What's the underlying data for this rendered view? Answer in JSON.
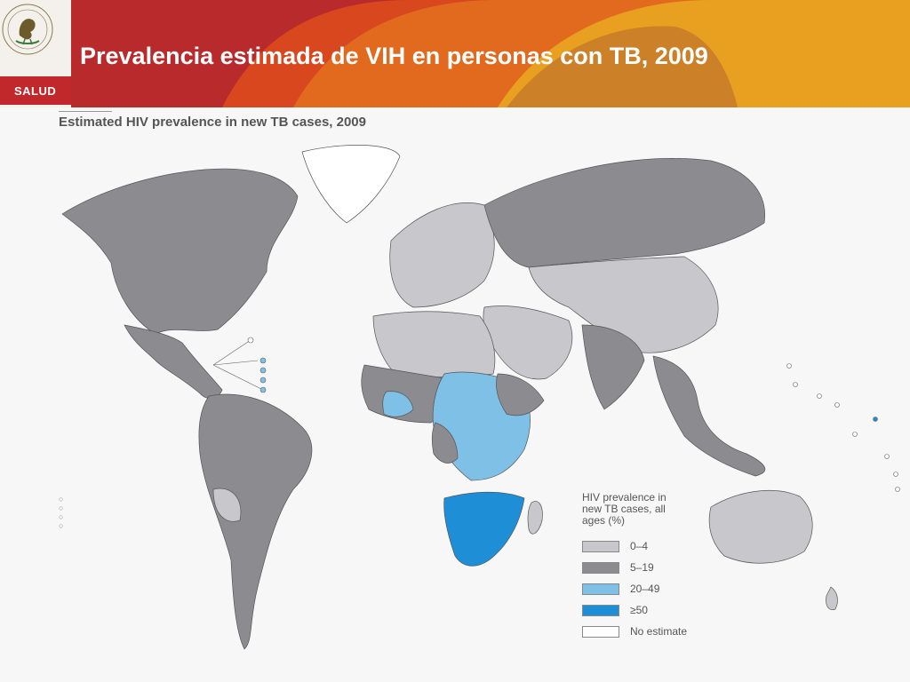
{
  "header": {
    "title": "Prevalencia estimada de VIH en personas con TB, 2009",
    "brand": "SALUD",
    "seal_text": "ESTADOS UNIDOS MEXICANOS",
    "colors": {
      "red": "#b82a2b",
      "orange": "#e26a1e",
      "amber": "#e9a020",
      "brown": "#c77a2a"
    }
  },
  "map": {
    "title": "Estimated HIV prevalence in new TB cases, 2009",
    "legend": {
      "title": "HIV prevalence in new TB cases, all ages (%)",
      "items": [
        {
          "label": "0–4",
          "color": "#c8c8cc"
        },
        {
          "label": "5–19",
          "color": "#8c8c90"
        },
        {
          "label": "20–49",
          "color": "#7fc0e6"
        },
        {
          "label": "≥50",
          "color": "#1e8fd6"
        },
        {
          "label": "No estimate",
          "color": "#ffffff"
        }
      ]
    },
    "regions": [
      {
        "name": "North America",
        "category": "5–19"
      },
      {
        "name": "Greenland",
        "category": "No estimate"
      },
      {
        "name": "Mexico & Central America",
        "category": "5–19"
      },
      {
        "name": "South America",
        "category": "5–19"
      },
      {
        "name": "Europe",
        "category": "0–4"
      },
      {
        "name": "Russia",
        "category": "5–19"
      },
      {
        "name": "North Africa",
        "category": "0–4"
      },
      {
        "name": "Middle East",
        "category": "0–4"
      },
      {
        "name": "West Africa",
        "category": "5–19"
      },
      {
        "name": "Central / East Africa",
        "category": "20–49"
      },
      {
        "name": "Southern Africa",
        "category": "≥50"
      },
      {
        "name": "China & Central Asia",
        "category": "0–4"
      },
      {
        "name": "South Asia",
        "category": "5–19"
      },
      {
        "name": "Southeast Asia",
        "category": "5–19"
      },
      {
        "name": "Australia",
        "category": "0–4"
      },
      {
        "name": "Madagascar",
        "category": "0–4"
      }
    ]
  }
}
